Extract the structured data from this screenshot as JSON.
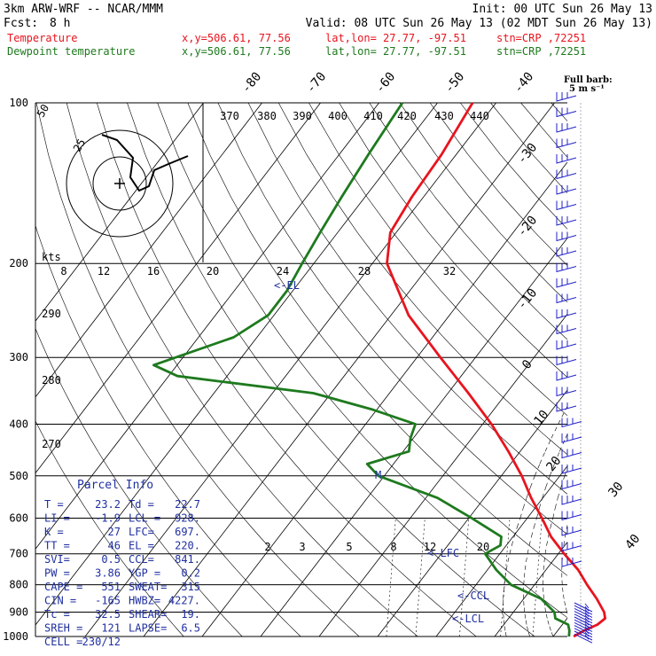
{
  "header": {
    "model": "3km ARW-WRF -- NCAR/MMM",
    "init": "Init: 00 UTC Sun 26 May 13",
    "fcst_label": "Fcst:",
    "fcst_value": "8 h",
    "valid": "Valid: 08 UTC Sun 26 May 13 (02 MDT Sun 26 May 13)",
    "temp_line": {
      "name": "Temperature",
      "xy": "x,y=506.61, 77.56",
      "latlon": "lat,lon= 27.77, -97.51",
      "stn": "stn=CRP ,72251"
    },
    "dew_line": {
      "name": "Dewpoint temperature",
      "xy": "x,y=506.61, 77.56",
      "latlon": "lat,lon= 27.77, -97.51",
      "stn": "stn=CRP ,72251"
    }
  },
  "colors": {
    "temperature": "#e8141e",
    "dewpoint": "#1e7a1e",
    "parcel_info_title": "#2030a0",
    "wind_barbs": "#2020c8",
    "grid": "#000000",
    "background": "#ffffff"
  },
  "barb_legend": {
    "line1": "Full barb:",
    "line2": "5 m s⁻¹"
  },
  "hodograph": {
    "units": "kts",
    "ring_labels": [
      "50",
      "25"
    ],
    "wind_speed_ticks": [
      "8",
      "12",
      "16",
      "20",
      "24",
      "28",
      "32"
    ],
    "theta_e_ticks": [
      "370",
      "380",
      "390",
      "400",
      "410",
      "420",
      "430",
      "440"
    ]
  },
  "labels": {
    "el_marker": "<-EL",
    "m_marker": "M",
    "lfc_marker": "<-LFC",
    "ccl_marker": "<-CCL",
    "lcl_marker": "<-LCL",
    "mixing_ratio_ticks": [
      "2",
      "3",
      "5",
      "8",
      "12",
      "20"
    ],
    "temp_ticks": [
      "-80",
      "-70",
      "-60",
      "-50",
      "-40",
      "-30",
      "-20",
      "-10",
      "0",
      "10",
      "20",
      "30",
      "40"
    ],
    "theta_ticks": [
      "290",
      "280",
      "270"
    ]
  },
  "parcel_info": {
    "title": "Parcel Info",
    "rows": [
      [
        "T  =",
        "23.2",
        "Td =",
        "22.7"
      ],
      [
        "LI =",
        "-1.9",
        "LCL =",
        "928."
      ],
      [
        "K  =",
        "27",
        "LFC=",
        "697."
      ],
      [
        "TT =",
        "46",
        "EL =",
        "220."
      ],
      [
        "SVI=",
        "0.5",
        "CCL=",
        "841."
      ],
      [
        "PW =",
        "3.86",
        "YGP =",
        "0.2"
      ],
      [
        "CAPE =",
        "551",
        "SWEAT=",
        "315"
      ],
      [
        "CIN =",
        "-165",
        "HWBZ=",
        "4227."
      ],
      [
        "Tc =",
        "32.5",
        "SHEAR=",
        "19."
      ],
      [
        "SREH =",
        "121",
        "LAPSE=",
        "6.5"
      ],
      [
        "CELL =",
        "230/12",
        "",
        ""
      ]
    ]
  },
  "chart_data": {
    "type": "line",
    "title": "",
    "xlabel": "",
    "ylabel": "",
    "y_scale": "log-pressure",
    "pressure_levels": [
      "100",
      "200",
      "300",
      "400",
      "500",
      "600",
      "700",
      "800",
      "900",
      "1000"
    ],
    "series": [
      {
        "name": "Temperature",
        "pressure_hPa": [
          1000,
          975,
          950,
          925,
          900,
          850,
          800,
          750,
          700,
          650,
          600,
          550,
          500,
          450,
          400,
          350,
          300,
          250,
          200,
          175,
          150,
          125,
          100
        ],
        "temperature_C": [
          23.5,
          24.5,
          26.0,
          26.5,
          25.5,
          22.5,
          19.0,
          15.5,
          11.0,
          6.5,
          2.5,
          -2.0,
          -6.5,
          -12.0,
          -18.5,
          -26.5,
          -36.0,
          -47.0,
          -57.5,
          -61.0,
          -62.0,
          -62.5,
          -64.0
        ]
      },
      {
        "name": "Dewpoint temperature",
        "pressure_hPa": [
          1000,
          975,
          950,
          925,
          900,
          850,
          800,
          750,
          700,
          675,
          650,
          600,
          550,
          500,
          475,
          450,
          425,
          400,
          375,
          350,
          325,
          310,
          275,
          250,
          225,
          200,
          175,
          150,
          125,
          100
        ],
        "temperature_C": [
          22.7,
          22.0,
          21.0,
          18.0,
          17.0,
          13.0,
          6.0,
          1.5,
          -2.5,
          -1.0,
          -2.0,
          -9.5,
          -18.0,
          -31.0,
          -34.5,
          -29.0,
          -30.5,
          -31.5,
          -41.0,
          -53.0,
          -78.5,
          -84.0,
          -74.0,
          -71.0,
          -71.0,
          -72.0,
          -73.0,
          -74.0,
          -75.0,
          -76.0
        ]
      }
    ]
  }
}
